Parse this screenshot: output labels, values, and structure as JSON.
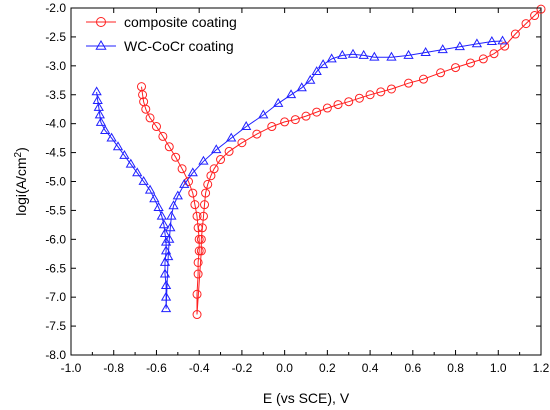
{
  "chart_data": {
    "type": "scatter",
    "title": "",
    "xlabel": "E (vs SCE), V",
    "ylabel_main": "logi(A/cm",
    "ylabel_sup": "2",
    "ylabel_close": ")",
    "xlim": [
      -1.0,
      1.2
    ],
    "ylim": [
      -8.0,
      -2.0
    ],
    "x_ticks": [
      -1.0,
      -0.8,
      -0.6,
      -0.4,
      -0.2,
      0.0,
      0.2,
      0.4,
      0.6,
      0.8,
      1.0,
      1.2
    ],
    "x_tick_labels": [
      "-1.0",
      "-0.8",
      "-0.6",
      "-0.4",
      "-0.2",
      "0.0",
      "0.2",
      "0.4",
      "0.6",
      "0.8",
      "1.0",
      "1.2"
    ],
    "y_ticks": [
      -8.0,
      -7.5,
      -7.0,
      -6.5,
      -6.0,
      -5.5,
      -5.0,
      -4.5,
      -4.0,
      -3.5,
      -3.0,
      -2.5,
      -2.0
    ],
    "y_tick_labels": [
      "-8.0",
      "-7.5",
      "-7.0",
      "-6.5",
      "-6.0",
      "-5.5",
      "-5.0",
      "-4.5",
      "-4.0",
      "-3.5",
      "-3.0",
      "-2.5",
      "-2.0"
    ],
    "grid": false,
    "legend_position": "top-left",
    "series": [
      {
        "name": "composite coating",
        "color": "#ff2020",
        "marker": "circle",
        "points": [
          [
            -0.67,
            -3.36
          ],
          [
            -0.665,
            -3.5
          ],
          [
            -0.66,
            -3.62
          ],
          [
            -0.65,
            -3.75
          ],
          [
            -0.63,
            -3.9
          ],
          [
            -0.6,
            -4.05
          ],
          [
            -0.57,
            -4.22
          ],
          [
            -0.54,
            -4.4
          ],
          [
            -0.51,
            -4.58
          ],
          [
            -0.48,
            -4.78
          ],
          [
            -0.45,
            -5.0
          ],
          [
            -0.43,
            -5.2
          ],
          [
            -0.42,
            -5.4
          ],
          [
            -0.41,
            -5.6
          ],
          [
            -0.405,
            -5.8
          ],
          [
            -0.4,
            -6.0
          ],
          [
            -0.4,
            -6.2
          ],
          [
            -0.405,
            -6.4
          ],
          [
            -0.405,
            -6.6
          ],
          [
            -0.41,
            -6.95
          ],
          [
            -0.41,
            -7.3
          ],
          [
            -0.39,
            -6.2
          ],
          [
            -0.39,
            -6.0
          ],
          [
            -0.385,
            -5.8
          ],
          [
            -0.38,
            -5.6
          ],
          [
            -0.375,
            -5.4
          ],
          [
            -0.37,
            -5.2
          ],
          [
            -0.36,
            -5.05
          ],
          [
            -0.345,
            -4.9
          ],
          [
            -0.33,
            -4.78
          ],
          [
            -0.3,
            -4.62
          ],
          [
            -0.26,
            -4.48
          ],
          [
            -0.2,
            -4.33
          ],
          [
            -0.13,
            -4.18
          ],
          [
            -0.06,
            -4.05
          ],
          [
            0.0,
            -3.97
          ],
          [
            0.05,
            -3.93
          ],
          [
            0.1,
            -3.87
          ],
          [
            0.15,
            -3.8
          ],
          [
            0.2,
            -3.73
          ],
          [
            0.25,
            -3.67
          ],
          [
            0.3,
            -3.62
          ],
          [
            0.35,
            -3.56
          ],
          [
            0.4,
            -3.5
          ],
          [
            0.45,
            -3.45
          ],
          [
            0.5,
            -3.4
          ],
          [
            0.58,
            -3.3
          ],
          [
            0.65,
            -3.23
          ],
          [
            0.73,
            -3.12
          ],
          [
            0.8,
            -3.03
          ],
          [
            0.87,
            -2.95
          ],
          [
            0.93,
            -2.88
          ],
          [
            0.98,
            -2.79
          ],
          [
            1.03,
            -2.66
          ],
          [
            1.08,
            -2.45
          ],
          [
            1.13,
            -2.27
          ],
          [
            1.17,
            -2.13
          ],
          [
            1.2,
            -2.02
          ]
        ]
      },
      {
        "name": "WC-CoCr coating",
        "color": "#2020ff",
        "marker": "triangle",
        "points": [
          [
            -0.88,
            -3.45
          ],
          [
            -0.875,
            -3.6
          ],
          [
            -0.87,
            -3.72
          ],
          [
            -0.865,
            -3.85
          ],
          [
            -0.86,
            -3.98
          ],
          [
            -0.84,
            -4.12
          ],
          [
            -0.81,
            -4.25
          ],
          [
            -0.78,
            -4.4
          ],
          [
            -0.75,
            -4.55
          ],
          [
            -0.72,
            -4.7
          ],
          [
            -0.69,
            -4.85
          ],
          [
            -0.66,
            -5.0
          ],
          [
            -0.63,
            -5.15
          ],
          [
            -0.61,
            -5.3
          ],
          [
            -0.59,
            -5.45
          ],
          [
            -0.575,
            -5.6
          ],
          [
            -0.565,
            -5.75
          ],
          [
            -0.56,
            -5.9
          ],
          [
            -0.555,
            -6.05
          ],
          [
            -0.555,
            -6.2
          ],
          [
            -0.56,
            -6.4
          ],
          [
            -0.56,
            -6.6
          ],
          [
            -0.555,
            -6.8
          ],
          [
            -0.555,
            -7.0
          ],
          [
            -0.555,
            -7.2
          ],
          [
            -0.545,
            -6.3
          ],
          [
            -0.54,
            -6.0
          ],
          [
            -0.535,
            -5.8
          ],
          [
            -0.53,
            -5.6
          ],
          [
            -0.52,
            -5.42
          ],
          [
            -0.5,
            -5.25
          ],
          [
            -0.47,
            -5.05
          ],
          [
            -0.43,
            -4.85
          ],
          [
            -0.38,
            -4.65
          ],
          [
            -0.32,
            -4.45
          ],
          [
            -0.25,
            -4.25
          ],
          [
            -0.18,
            -4.05
          ],
          [
            -0.1,
            -3.85
          ],
          [
            -0.03,
            -3.65
          ],
          [
            0.03,
            -3.5
          ],
          [
            0.08,
            -3.38
          ],
          [
            0.12,
            -3.25
          ],
          [
            0.15,
            -3.1
          ],
          [
            0.18,
            -2.98
          ],
          [
            0.22,
            -2.88
          ],
          [
            0.27,
            -2.82
          ],
          [
            0.32,
            -2.8
          ],
          [
            0.37,
            -2.82
          ],
          [
            0.42,
            -2.85
          ],
          [
            0.5,
            -2.85
          ],
          [
            0.58,
            -2.82
          ],
          [
            0.66,
            -2.77
          ],
          [
            0.74,
            -2.72
          ],
          [
            0.82,
            -2.67
          ],
          [
            0.9,
            -2.62
          ],
          [
            0.97,
            -2.58
          ],
          [
            1.02,
            -2.57
          ]
        ]
      }
    ]
  }
}
